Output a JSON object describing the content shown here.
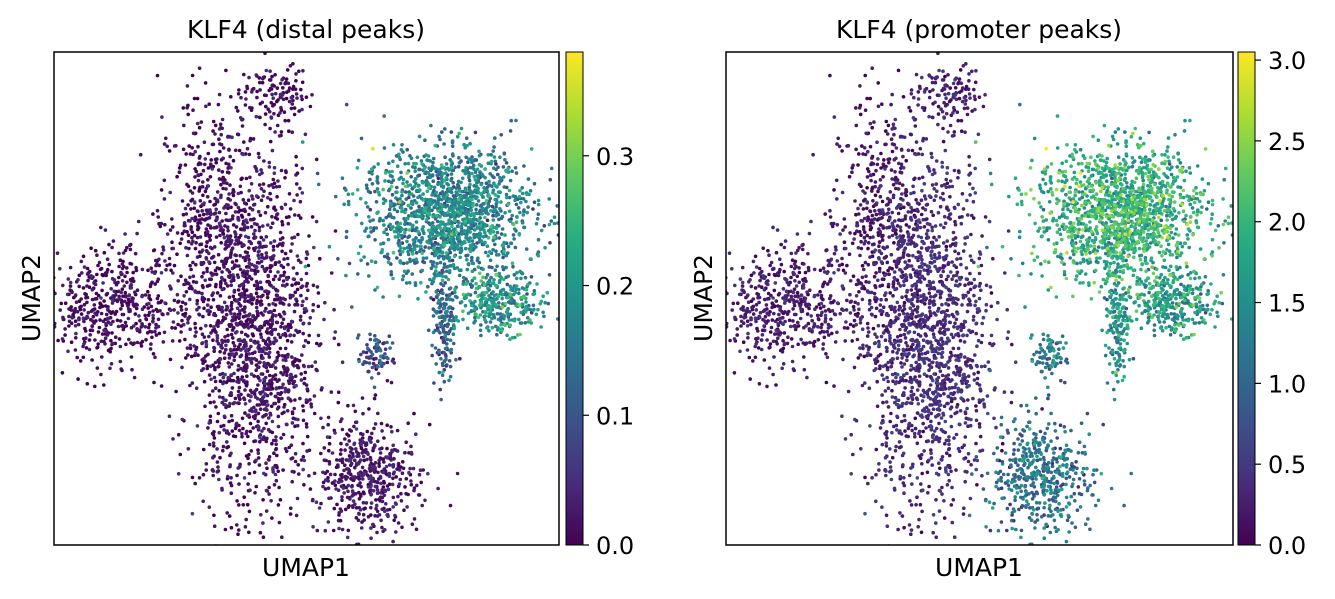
{
  "chart_data": [
    {
      "type": "scatter",
      "title": "KLF4 (distal peaks)",
      "xlabel": "UMAP1",
      "ylabel": "UMAP2",
      "colormap": "viridis",
      "colorbar": {
        "range": [
          0.0,
          0.38
        ],
        "ticks": [
          0.0,
          0.1,
          0.2,
          0.3
        ],
        "tick_labels": [
          "0.0",
          "0.1",
          "0.2",
          "0.3"
        ]
      },
      "clusters": [
        {
          "name": "top-spur",
          "center": [
            0.44,
            0.91
          ],
          "value": 0.01
        },
        {
          "name": "left-column",
          "center": [
            0.3,
            0.66
          ],
          "value": 0.01
        },
        {
          "name": "central-body",
          "center": [
            0.4,
            0.42
          ],
          "value": 0.015
        },
        {
          "name": "left-blob",
          "center": [
            0.11,
            0.49
          ],
          "value": 0.01
        },
        {
          "name": "right-upper",
          "center": [
            0.78,
            0.67
          ],
          "value": 0.16
        },
        {
          "name": "right-tail",
          "center": [
            0.88,
            0.49
          ],
          "value": 0.19
        },
        {
          "name": "right-stem",
          "center": [
            0.77,
            0.44
          ],
          "value": 0.11
        },
        {
          "name": "small-mid",
          "center": [
            0.64,
            0.38
          ],
          "value": 0.08
        },
        {
          "name": "bottom-blob",
          "center": [
            0.62,
            0.14
          ],
          "value": 0.02
        }
      ]
    },
    {
      "type": "scatter",
      "title": "KLF4 (promoter peaks)",
      "xlabel": "UMAP1",
      "ylabel": "UMAP2",
      "colormap": "viridis",
      "colorbar": {
        "range": [
          0.0,
          3.05
        ],
        "ticks": [
          0.0,
          0.5,
          1.0,
          1.5,
          2.0,
          2.5,
          3.0
        ],
        "tick_labels": [
          "0.0",
          "0.5",
          "1.0",
          "1.5",
          "2.0",
          "2.5",
          "3.0"
        ]
      },
      "clusters": [
        {
          "name": "top-spur",
          "center": [
            0.44,
            0.91
          ],
          "value": 0.25
        },
        {
          "name": "left-column",
          "center": [
            0.3,
            0.66
          ],
          "value": 0.15
        },
        {
          "name": "central-body",
          "center": [
            0.4,
            0.42
          ],
          "value": 0.35
        },
        {
          "name": "left-blob",
          "center": [
            0.11,
            0.49
          ],
          "value": 0.2
        },
        {
          "name": "right-upper",
          "center": [
            0.78,
            0.67
          ],
          "value": 1.85
        },
        {
          "name": "right-tail",
          "center": [
            0.88,
            0.49
          ],
          "value": 1.6
        },
        {
          "name": "right-stem",
          "center": [
            0.77,
            0.44
          ],
          "value": 1.5
        },
        {
          "name": "small-mid",
          "center": [
            0.64,
            0.38
          ],
          "value": 1.2
        },
        {
          "name": "bottom-blob",
          "center": [
            0.62,
            0.14
          ],
          "value": 1.1
        }
      ]
    }
  ]
}
